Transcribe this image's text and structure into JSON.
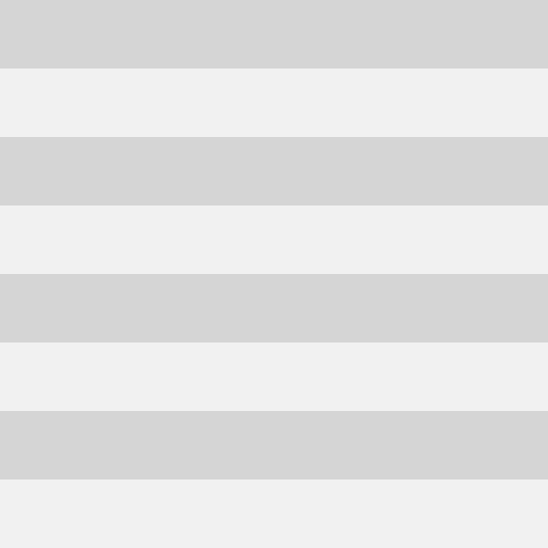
{
  "pattern": {
    "orientation": "horizontal",
    "stripe_count": 8,
    "colors": [
      "#d5d5d5",
      "#f1f1f1"
    ]
  }
}
